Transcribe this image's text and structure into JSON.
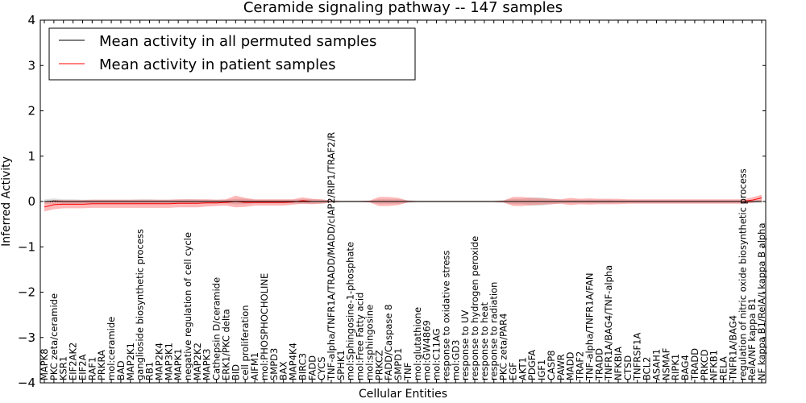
{
  "chart_data": {
    "type": "line",
    "title": "Ceramide signaling pathway -- 147 samples",
    "xlabel": "Cellular Entities",
    "ylabel": "Inferred Activity",
    "ylim": [
      -4,
      4
    ],
    "yticks": [
      -4,
      -3,
      -2,
      -1,
      0,
      1,
      2,
      3,
      4
    ],
    "ytick_labels": [
      "−4",
      "−3",
      "−2",
      "−1",
      "0",
      "1",
      "2",
      "3",
      "4"
    ],
    "legend_position": "top-left",
    "categories": [
      "MAPK8",
      "PKC zeta/ceramide",
      "KSR1",
      "EIF2AK2",
      "EIF2A",
      "RAF1",
      "PRKRA",
      "mol:ceramide",
      "BAD",
      "MAP2K1",
      "ganglioside biosynthetic process",
      "RB1",
      "MAP2K4",
      "MAP3K1",
      "MAPK1",
      "negative regulation of cell cycle",
      "MAP2K2",
      "MAPK3",
      "Cathepsin D/ceramide",
      "ERK1/PKC delta",
      "BID",
      "cell proliferation",
      "AIFM1",
      "mol:PHOSPHOCHOLINE",
      "SMPD3",
      "BAX",
      "MAP4K4",
      "BIRC3",
      "FADD",
      "CYCS",
      "TNF-alpha/TNFR1A/TRADD/MADD/cIAP2/RIP1/TRAF2/R",
      "SPHK1",
      "mol:Sphingosine-1-phosphate",
      "mol:Free Fatty acid",
      "mol:sphingosine",
      "PRKCZ",
      "FADD/Caspase 8",
      "SMPD1",
      "TNF",
      "mol:glutathione",
      "mol:GW4869",
      "mol:C11AG",
      "response to oxidative stress",
      "mol:GD3",
      "response to UV",
      "response to hydrogen peroxide",
      "response to heat",
      "response to radiation",
      "PKC zeta/PAR4",
      "EGF",
      "AKT1",
      "PDGFA",
      "IGF1",
      "CASP8",
      "PAWR",
      "MADD",
      "TRAF2",
      "TNF-alpha/TNFR1A/FAN",
      "TRADD",
      "TNFR1A/BAG4/TNF-alpha",
      "NFKBIA",
      "CTSD",
      "TNFRSF1A",
      "BCL2",
      "ASAH1",
      "NSMAF",
      "RIPK1",
      "BAG4",
      "TRADD",
      "PRKCD",
      "NFKB1",
      "RELA",
      "TNFR1A/BAG4",
      "regulation of nitric oxide biosynthetic process",
      "RelA/NF kappa B1",
      "NF kappa B1/RelA/I kappa B alpha"
    ],
    "series": [
      {
        "name": "Mean activity in all permuted samples",
        "color": "#000000",
        "values": [
          0.0,
          0.01,
          0.0,
          0.0,
          0.0,
          0.0,
          0.0,
          0.0,
          0.0,
          0.0,
          0.0,
          0.0,
          0.0,
          0.0,
          0.0,
          0.0,
          0.0,
          0.0,
          0.0,
          0.0,
          0.0,
          0.0,
          0.0,
          0.0,
          0.0,
          0.0,
          0.0,
          0.0,
          0.0,
          0.0,
          0.0,
          0.0,
          0.0,
          0.0,
          0.0,
          0.0,
          0.0,
          0.0,
          0.0,
          0.0,
          0.0,
          0.0,
          0.0,
          0.0,
          0.0,
          0.0,
          0.0,
          0.0,
          0.0,
          0.0,
          0.0,
          0.0,
          0.0,
          0.0,
          0.0,
          0.0,
          0.0,
          0.0,
          0.0,
          0.0,
          0.0,
          0.0,
          0.0,
          0.0,
          0.0,
          0.0,
          0.0,
          0.0,
          0.0,
          0.0,
          0.0,
          0.0,
          0.0,
          0.0,
          0.0,
          0.0
        ],
        "band": [
          0.05,
          0.06,
          0.05,
          0.05,
          0.04,
          0.04,
          0.04,
          0.04,
          0.04,
          0.04,
          0.05,
          0.05,
          0.04,
          0.04,
          0.04,
          0.05,
          0.04,
          0.04,
          0.04,
          0.04,
          0.06,
          0.06,
          0.04,
          0.04,
          0.04,
          0.04,
          0.04,
          0.05,
          0.05,
          0.04,
          0.03,
          0.02,
          0.02,
          0.02,
          0.02,
          0.05,
          0.05,
          0.05,
          0.03,
          0.02,
          0.02,
          0.02,
          0.02,
          0.02,
          0.02,
          0.02,
          0.02,
          0.02,
          0.03,
          0.06,
          0.06,
          0.09,
          0.09,
          0.06,
          0.04,
          0.04,
          0.04,
          0.04,
          0.04,
          0.04,
          0.03,
          0.03,
          0.03,
          0.03,
          0.03,
          0.03,
          0.03,
          0.03,
          0.03,
          0.03,
          0.03,
          0.03,
          0.03,
          0.03,
          0.03,
          0.03
        ]
      },
      {
        "name": "Mean activity in patient samples",
        "color": "#ff0000",
        "values": [
          -0.12,
          -0.07,
          -0.06,
          -0.06,
          -0.06,
          -0.05,
          -0.05,
          -0.05,
          -0.05,
          -0.05,
          -0.05,
          -0.05,
          -0.05,
          -0.05,
          -0.04,
          -0.04,
          -0.04,
          -0.03,
          -0.03,
          -0.02,
          0.0,
          -0.02,
          -0.02,
          -0.02,
          -0.02,
          -0.02,
          -0.01,
          0.02,
          0.0,
          0.0,
          0.0,
          0.0,
          0.0,
          0.0,
          0.0,
          0.0,
          0.0,
          0.0,
          0.0,
          0.0,
          0.0,
          0.0,
          0.0,
          0.0,
          0.0,
          0.0,
          0.0,
          0.0,
          0.0,
          0.0,
          0.0,
          0.0,
          0.0,
          0.0,
          0.0,
          0.0,
          0.0,
          0.0,
          0.0,
          0.0,
          0.0,
          0.0,
          0.0,
          0.0,
          0.0,
          0.0,
          0.0,
          0.0,
          0.0,
          0.0,
          0.0,
          0.0,
          0.0,
          0.0,
          0.03,
          0.08
        ],
        "band": [
          0.1,
          0.1,
          0.09,
          0.09,
          0.09,
          0.09,
          0.09,
          0.09,
          0.09,
          0.09,
          0.09,
          0.09,
          0.09,
          0.09,
          0.09,
          0.09,
          0.09,
          0.08,
          0.07,
          0.07,
          0.13,
          0.1,
          0.07,
          0.07,
          0.07,
          0.07,
          0.06,
          0.07,
          0.06,
          0.05,
          0.02,
          0.01,
          0.01,
          0.01,
          0.02,
          0.1,
          0.1,
          0.08,
          0.02,
          0.01,
          0.01,
          0.01,
          0.01,
          0.01,
          0.01,
          0.01,
          0.01,
          0.01,
          0.02,
          0.1,
          0.1,
          0.08,
          0.07,
          0.06,
          0.05,
          0.08,
          0.06,
          0.07,
          0.06,
          0.06,
          0.06,
          0.05,
          0.05,
          0.05,
          0.05,
          0.05,
          0.05,
          0.05,
          0.05,
          0.05,
          0.05,
          0.05,
          0.05,
          0.05,
          0.06,
          0.07
        ]
      }
    ]
  }
}
